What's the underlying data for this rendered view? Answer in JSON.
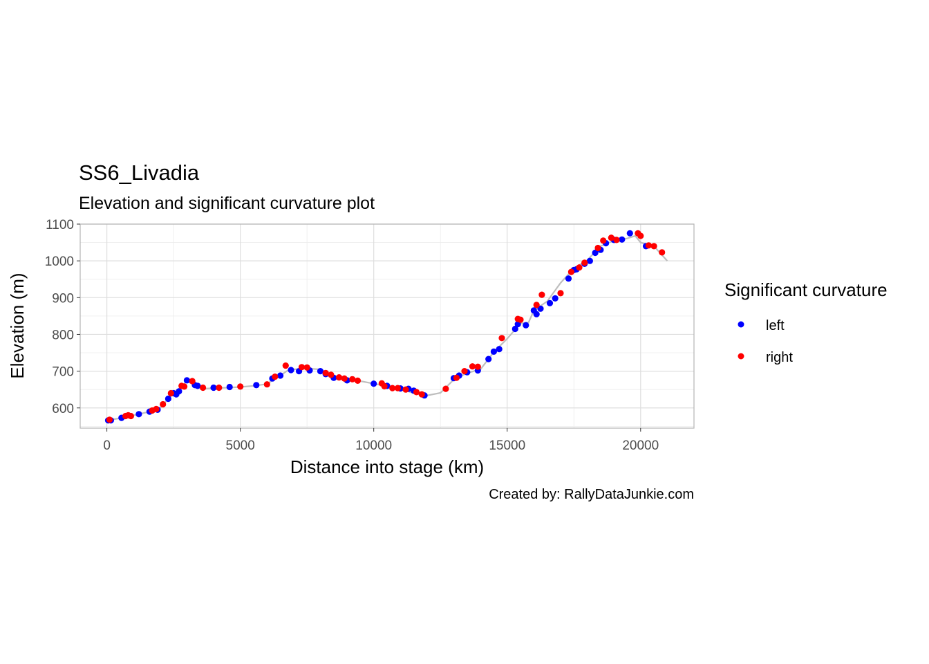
{
  "chart_data": {
    "type": "scatter",
    "title": "SS6_Livadia",
    "subtitle": "Elevation and significant curvature plot",
    "xlabel": "Distance into stage (km)",
    "ylabel": "Elevation (m)",
    "caption": "Created by: RallyDataJunkie.com",
    "xlim": [
      -1000,
      22000
    ],
    "ylim": [
      545,
      1100
    ],
    "x_ticks": [
      0,
      5000,
      10000,
      15000,
      20000
    ],
    "x_tick_labels": [
      "0",
      "5000",
      "10000",
      "15000",
      "20000"
    ],
    "y_ticks": [
      600,
      700,
      800,
      900,
      1000,
      1100
    ],
    "y_tick_labels": [
      "600",
      "700",
      "800",
      "900",
      "1000",
      "1100"
    ],
    "grid": true,
    "legend": {
      "title": "Significant curvature",
      "position": "right",
      "entries": [
        {
          "label": "left",
          "color": "#0000ff"
        },
        {
          "label": "right",
          "color": "#ff0000"
        }
      ]
    },
    "profile": {
      "color": "#bebebe",
      "x": [
        0,
        500,
        1000,
        1500,
        2000,
        2300,
        2600,
        2800,
        3000,
        3300,
        3600,
        4000,
        4500,
        5000,
        5500,
        6000,
        6300,
        6600,
        6800,
        7000,
        7500,
        8000,
        8500,
        9000,
        9500,
        10000,
        10500,
        11000,
        11500,
        12000,
        12500,
        13000,
        13500,
        14000,
        14500,
        15000,
        15500,
        15800,
        16000,
        16500,
        17000,
        17500,
        18000,
        18500,
        19000,
        19500,
        19800,
        20000,
        20500,
        21000
      ],
      "y": [
        566,
        572,
        580,
        588,
        600,
        625,
        645,
        660,
        672,
        663,
        652,
        654,
        655,
        657,
        660,
        665,
        680,
        693,
        703,
        705,
        707,
        705,
        686,
        680,
        673,
        666,
        659,
        652,
        640,
        634,
        641,
        677,
        695,
        705,
        752,
        788,
        830,
        832,
        865,
        890,
        940,
        980,
        1002,
        1040,
        1055,
        1061,
        1068,
        1050,
        1040,
        1000
      ]
    },
    "series": [
      {
        "name": "left",
        "color": "#0000ff",
        "x": [
          50,
          150,
          550,
          1200,
          1600,
          1900,
          2300,
          2500,
          2600,
          2700,
          3000,
          3300,
          3400,
          4000,
          4600,
          5600,
          6200,
          6500,
          6900,
          7200,
          7600,
          8000,
          8200,
          8500,
          9000,
          10000,
          10500,
          11000,
          11300,
          11500,
          11900,
          13000,
          13200,
          13500,
          13900,
          14300,
          14500,
          14700,
          15300,
          15400,
          15700,
          16000,
          16100,
          16250,
          16600,
          16800,
          17300,
          17500,
          17600,
          17900,
          18100,
          18300,
          18500,
          18700,
          19000,
          19300,
          19600,
          20200
        ],
        "y": [
          566,
          566,
          573,
          583,
          590,
          595,
          625,
          640,
          637,
          645,
          675,
          662,
          660,
          655,
          657,
          662,
          680,
          688,
          703,
          700,
          702,
          700,
          692,
          682,
          675,
          666,
          660,
          653,
          652,
          647,
          634,
          681,
          688,
          697,
          702,
          733,
          753,
          760,
          815,
          828,
          825,
          865,
          855,
          870,
          885,
          898,
          952,
          975,
          977,
          992,
          1000,
          1022,
          1030,
          1048,
          1057,
          1058,
          1075,
          1040
        ]
      },
      {
        "name": "right",
        "color": "#ff0000",
        "x": [
          100,
          700,
          800,
          900,
          1700,
          1850,
          2100,
          2400,
          2800,
          2900,
          3200,
          3600,
          4200,
          5000,
          6000,
          6300,
          6700,
          7300,
          7500,
          8200,
          8400,
          8700,
          8900,
          9200,
          9400,
          10300,
          10400,
          10700,
          10900,
          11200,
          11600,
          11800,
          12700,
          13100,
          13400,
          13700,
          13900,
          14800,
          15400,
          15500,
          16100,
          16300,
          17000,
          17400,
          17700,
          17900,
          18400,
          18600,
          18900,
          19100,
          19900,
          20000,
          20300,
          20500,
          20800
        ],
        "y": [
          568,
          578,
          580,
          578,
          593,
          597,
          610,
          640,
          660,
          658,
          673,
          655,
          655,
          658,
          664,
          685,
          715,
          711,
          710,
          695,
          690,
          683,
          680,
          678,
          674,
          667,
          659,
          654,
          654,
          650,
          643,
          637,
          652,
          682,
          700,
          713,
          712,
          790,
          842,
          840,
          880,
          908,
          912,
          970,
          982,
          995,
          1035,
          1055,
          1063,
          1057,
          1075,
          1068,
          1042,
          1040,
          1023
        ]
      }
    ]
  }
}
